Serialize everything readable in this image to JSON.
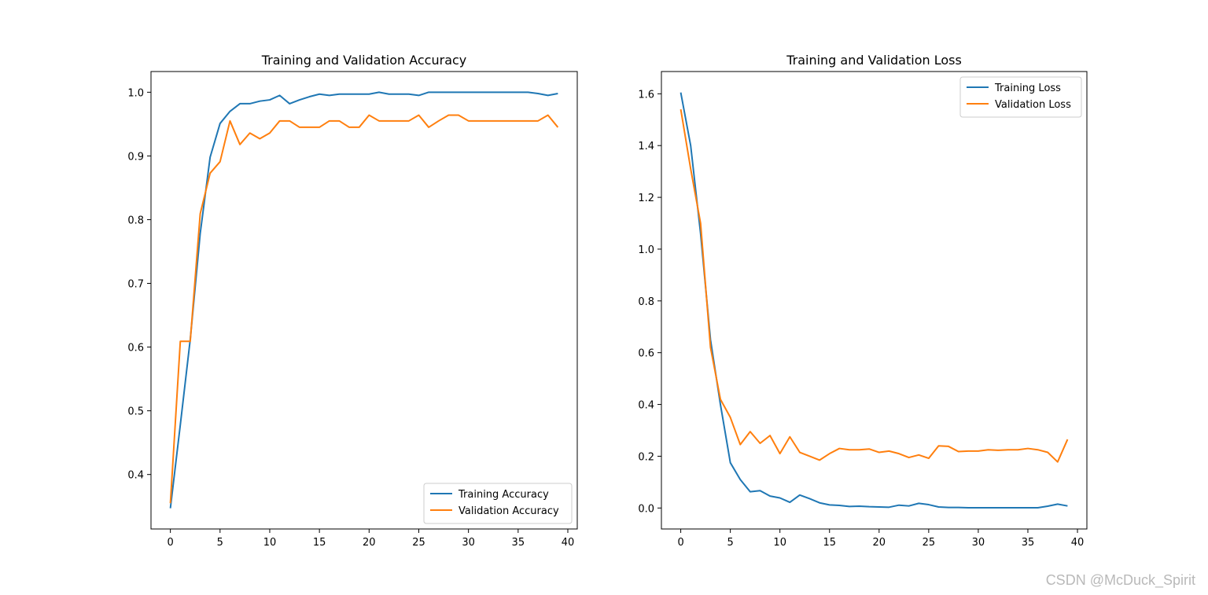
{
  "watermark": "CSDN @McDuck_Spirit",
  "chart_data": [
    {
      "type": "line",
      "title": "Training and Validation Accuracy",
      "xlabel": "",
      "ylabel": "",
      "xlim": [
        -1.95,
        40.95
      ],
      "ylim": [
        0.3145,
        1.0325
      ],
      "xticks": [
        0,
        5,
        10,
        15,
        20,
        25,
        30,
        35,
        40
      ],
      "yticks": [
        0.4,
        0.5,
        0.6,
        0.7,
        0.8,
        0.9,
        1.0
      ],
      "ytick_decimals": 1,
      "grid": false,
      "legend_position": "lower-right",
      "x": [
        0,
        1,
        2,
        3,
        4,
        5,
        6,
        7,
        8,
        9,
        10,
        11,
        12,
        13,
        14,
        15,
        16,
        17,
        18,
        19,
        20,
        21,
        22,
        23,
        24,
        25,
        26,
        27,
        28,
        29,
        30,
        31,
        32,
        33,
        34,
        35,
        36,
        37,
        38,
        39
      ],
      "series": [
        {
          "name": "Training Accuracy",
          "color": "#1f77b4",
          "values": [
            0.347,
            0.478,
            0.612,
            0.778,
            0.898,
            0.951,
            0.97,
            0.982,
            0.982,
            0.986,
            0.988,
            0.995,
            0.982,
            0.988,
            0.993,
            0.997,
            0.995,
            0.997,
            0.997,
            0.997,
            0.997,
            1.0,
            0.997,
            0.997,
            0.997,
            0.995,
            1.0,
            1.0,
            1.0,
            1.0,
            1.0,
            1.0,
            1.0,
            1.0,
            1.0,
            1.0,
            1.0,
            0.998,
            0.995,
            0.998
          ]
        },
        {
          "name": "Validation Accuracy",
          "color": "#ff7f0e",
          "values": [
            0.355,
            0.609,
            0.609,
            0.809,
            0.873,
            0.891,
            0.955,
            0.918,
            0.936,
            0.927,
            0.936,
            0.955,
            0.955,
            0.945,
            0.945,
            0.945,
            0.955,
            0.955,
            0.945,
            0.945,
            0.964,
            0.955,
            0.955,
            0.955,
            0.955,
            0.964,
            0.945,
            0.955,
            0.964,
            0.964,
            0.955,
            0.955,
            0.955,
            0.955,
            0.955,
            0.955,
            0.955,
            0.955,
            0.964,
            0.945
          ]
        }
      ]
    },
    {
      "type": "line",
      "title": "Training and Validation Loss",
      "xlabel": "",
      "ylabel": "",
      "xlim": [
        -1.95,
        40.95
      ],
      "ylim": [
        -0.081,
        1.686
      ],
      "xticks": [
        0,
        5,
        10,
        15,
        20,
        25,
        30,
        35,
        40
      ],
      "yticks": [
        0.0,
        0.2,
        0.4,
        0.6,
        0.8,
        1.0,
        1.2,
        1.4,
        1.6
      ],
      "ytick_decimals": 1,
      "grid": false,
      "legend_position": "upper-right",
      "x": [
        0,
        1,
        2,
        3,
        4,
        5,
        6,
        7,
        8,
        9,
        10,
        11,
        12,
        13,
        14,
        15,
        16,
        17,
        18,
        19,
        20,
        21,
        22,
        23,
        24,
        25,
        26,
        27,
        28,
        29,
        30,
        31,
        32,
        33,
        34,
        35,
        36,
        37,
        38,
        39
      ],
      "series": [
        {
          "name": "Training Loss",
          "color": "#1f77b4",
          "values": [
            1.605,
            1.4,
            1.06,
            0.65,
            0.4,
            0.175,
            0.11,
            0.063,
            0.067,
            0.046,
            0.039,
            0.022,
            0.05,
            0.036,
            0.02,
            0.012,
            0.01,
            0.006,
            0.007,
            0.005,
            0.004,
            0.003,
            0.011,
            0.008,
            0.018,
            0.013,
            0.004,
            0.002,
            0.002,
            0.001,
            0.001,
            0.001,
            0.001,
            0.001,
            0.001,
            0.001,
            0.001,
            0.007,
            0.015,
            0.008
          ]
        },
        {
          "name": "Validation Loss",
          "color": "#ff7f0e",
          "values": [
            1.54,
            1.31,
            1.1,
            0.62,
            0.42,
            0.35,
            0.245,
            0.295,
            0.25,
            0.28,
            0.21,
            0.275,
            0.215,
            0.2,
            0.185,
            0.21,
            0.23,
            0.225,
            0.225,
            0.228,
            0.215,
            0.22,
            0.21,
            0.195,
            0.205,
            0.192,
            0.24,
            0.238,
            0.218,
            0.22,
            0.22,
            0.225,
            0.223,
            0.225,
            0.225,
            0.23,
            0.225,
            0.215,
            0.178,
            0.265
          ]
        }
      ]
    }
  ]
}
